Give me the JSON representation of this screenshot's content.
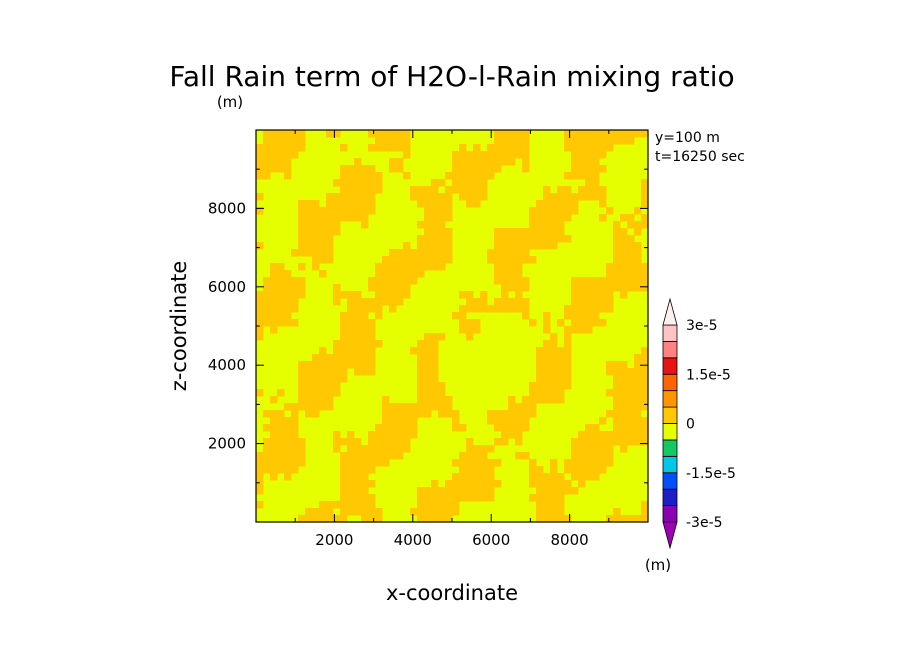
{
  "chart_data": {
    "type": "heatmap",
    "title": "Fall Rain term of H2O-l-Rain mixing ratio",
    "units_label": "(m)",
    "info": [
      "y=100 m",
      "t=16250 sec"
    ],
    "xlabel": "x-coordinate",
    "ylabel": "z-coordinate",
    "xlim": [
      0,
      10000
    ],
    "ylim": [
      0,
      10000
    ],
    "x_ticks": [
      "2000",
      "4000",
      "6000",
      "8000"
    ],
    "y_ticks": [
      "2000",
      "4000",
      "6000",
      "8000"
    ],
    "legend": {
      "colors": [
        "#8c00b4",
        "#1e1ec8",
        "#0050ff",
        "#00c8e6",
        "#14c864",
        "#e6ff00",
        "#ffc800",
        "#ff9600",
        "#ff6400",
        "#e61414",
        "#ff8282",
        "#ffc3c3"
      ],
      "labels": [
        "-3e-5",
        "-1.5e-5",
        "0",
        "1.5e-5",
        "3e-5"
      ],
      "units": "(m)"
    },
    "field_colors": {
      "low": "#e6ff00",
      "high": "#ffc800"
    }
  }
}
